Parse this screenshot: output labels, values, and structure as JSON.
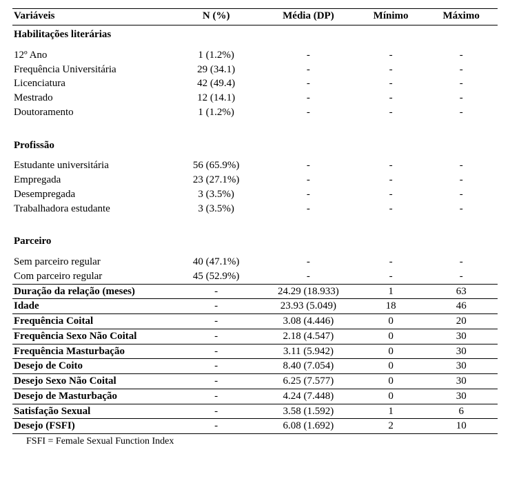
{
  "headers": {
    "c1": "Variáveis",
    "c2": "N (%)",
    "c3": "Média (DP)",
    "c4": "Mínimo",
    "c5": "Máximo"
  },
  "sections": {
    "hab": "Habilitações literárias",
    "prof": "Profissão",
    "parc": "Parceiro"
  },
  "hab": [
    {
      "label": "12º Ano",
      "n": "1 (1.2%)"
    },
    {
      "label": "Frequência Universitária",
      "n": "29 (34.1)"
    },
    {
      "label": "Licenciatura",
      "n": "42 (49.4)"
    },
    {
      "label": "Mestrado",
      "n": "12 (14.1)"
    },
    {
      "label": "Doutoramento",
      "n": "1 (1.2%)"
    }
  ],
  "prof": [
    {
      "label": "Estudante universitária",
      "n": "56 (65.9%)"
    },
    {
      "label": "Empregada",
      "n": "23 (27.1%)"
    },
    {
      "label": "Desempregada",
      "n": "3 (3.5%)"
    },
    {
      "label": "Trabalhadora estudante",
      "n": "3 (3.5%)"
    }
  ],
  "parc": [
    {
      "label": "Sem parceiro regular",
      "n": "40 (47.1%)"
    },
    {
      "label": "Com parceiro regular",
      "n": "45 (52.9%)"
    }
  ],
  "stats": [
    {
      "label": "Duração da relação (meses)",
      "mean": "24.29 (18.933)",
      "min": "1",
      "max": "63"
    },
    {
      "label": "Idade",
      "mean": "23.93 (5.049)",
      "min": "18",
      "max": "46"
    },
    {
      "label": "Frequência Coital",
      "mean": "3.08 (4.446)",
      "min": "0",
      "max": "20"
    },
    {
      "label": "Frequência Sexo Não Coital",
      "mean": "2.18 (4.547)",
      "min": "0",
      "max": "30"
    },
    {
      "label": "Frequência Masturbação",
      "mean": "3.11 (5.942)",
      "min": "0",
      "max": "30"
    },
    {
      "label": "Desejo de Coito",
      "mean": "8.40 (7.054)",
      "min": "0",
      "max": "30"
    },
    {
      "label": "Desejo Sexo Não Coital",
      "mean": "6.25 (7.577)",
      "min": "0",
      "max": "30"
    },
    {
      "label": "Desejo de Masturbação",
      "mean": "4.24 (7.448)",
      "min": "0",
      "max": "30"
    },
    {
      "label": "Satisfação Sexual",
      "mean": "3.58 (1.592)",
      "min": "1",
      "max": "6"
    },
    {
      "label": "Desejo (FSFI)",
      "mean": "6.08 (1.692)",
      "min": "2",
      "max": "10"
    }
  ],
  "dash": "-",
  "footnote": "FSFI = Female Sexual Function Index"
}
